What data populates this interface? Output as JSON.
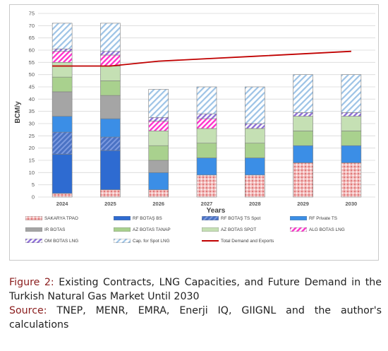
{
  "chart_data": {
    "type": "bar",
    "stacked": true,
    "categories": [
      "2024",
      "2025",
      "2026",
      "2027",
      "2028",
      "2029",
      "2030"
    ],
    "xlabel": "Years",
    "ylabel": "BCM/y",
    "ylim": [
      0,
      75
    ],
    "yticks": [
      0,
      5,
      10,
      15,
      20,
      25,
      30,
      35,
      40,
      45,
      50,
      55,
      60,
      65,
      70,
      75
    ],
    "grid": true,
    "legend_position": "bottom",
    "series": [
      {
        "name": "SAKARYA TPAO",
        "color": "#e58e8e",
        "pattern": "dots-red",
        "values": [
          1.5,
          3,
          3,
          9,
          9,
          14,
          14
        ]
      },
      {
        "name": "RF BOTAŞ BS",
        "color": "#2e6bd1",
        "pattern": "solid",
        "values": [
          16,
          16,
          0,
          0,
          0,
          0,
          0
        ]
      },
      {
        "name": "RF BOTAŞ TS Spot",
        "color": "#4a72c4",
        "pattern": "hatch-blue",
        "values": [
          9,
          5.5,
          0,
          0,
          0,
          0,
          0
        ]
      },
      {
        "name": "RF Private TS",
        "color": "#3b8ee6",
        "pattern": "solid",
        "values": [
          6.5,
          7.5,
          7,
          7,
          7,
          7,
          7
        ]
      },
      {
        "name": "IR BOTAS",
        "color": "#a5a5a5",
        "pattern": "solid",
        "values": [
          10,
          9.5,
          5,
          0,
          0,
          0,
          0
        ]
      },
      {
        "name": "AZ BOTAS TANAP",
        "color": "#a9d18e",
        "pattern": "solid",
        "values": [
          6,
          6,
          6,
          6,
          6,
          6,
          6
        ]
      },
      {
        "name": "AZ BOTAS SPOT",
        "color": "#c5e0b4",
        "pattern": "solid",
        "values": [
          6,
          6,
          6,
          6,
          6,
          6,
          6
        ]
      },
      {
        "name": "ALG BOTAS LNG",
        "color": "#ff66cc",
        "pattern": "hatch-pink",
        "values": [
          4.5,
          4.5,
          4,
          4,
          0,
          0,
          0
        ]
      },
      {
        "name": "OM BOTAS LNG",
        "color": "#b4a0e6",
        "pattern": "hatch-purple",
        "values": [
          1,
          1.5,
          1.5,
          2,
          2,
          1.5,
          1.5
        ]
      },
      {
        "name": "Cap. for Spot LNG",
        "color": "#9dc3e6",
        "pattern": "hatch-lightblue",
        "values": [
          10.5,
          11.5,
          11.5,
          11,
          15,
          15.5,
          15.5
        ]
      }
    ],
    "line": {
      "name": "Total Demand and Exports",
      "color": "#c00000",
      "values": [
        53.5,
        53.5,
        55.5,
        56.5,
        57.5,
        58.5,
        59.5
      ]
    }
  },
  "caption": {
    "figure_label": "Figure 2:",
    "figure_text": " Existing Contracts, LNG Capacities, and Future Demand in the Turkish Natural Gas Market Until 2030",
    "source_label": "Source:",
    "source_text": " TNEP, MENR, EMRA, Enerji IQ, GIIGNL and the author's calculations"
  }
}
